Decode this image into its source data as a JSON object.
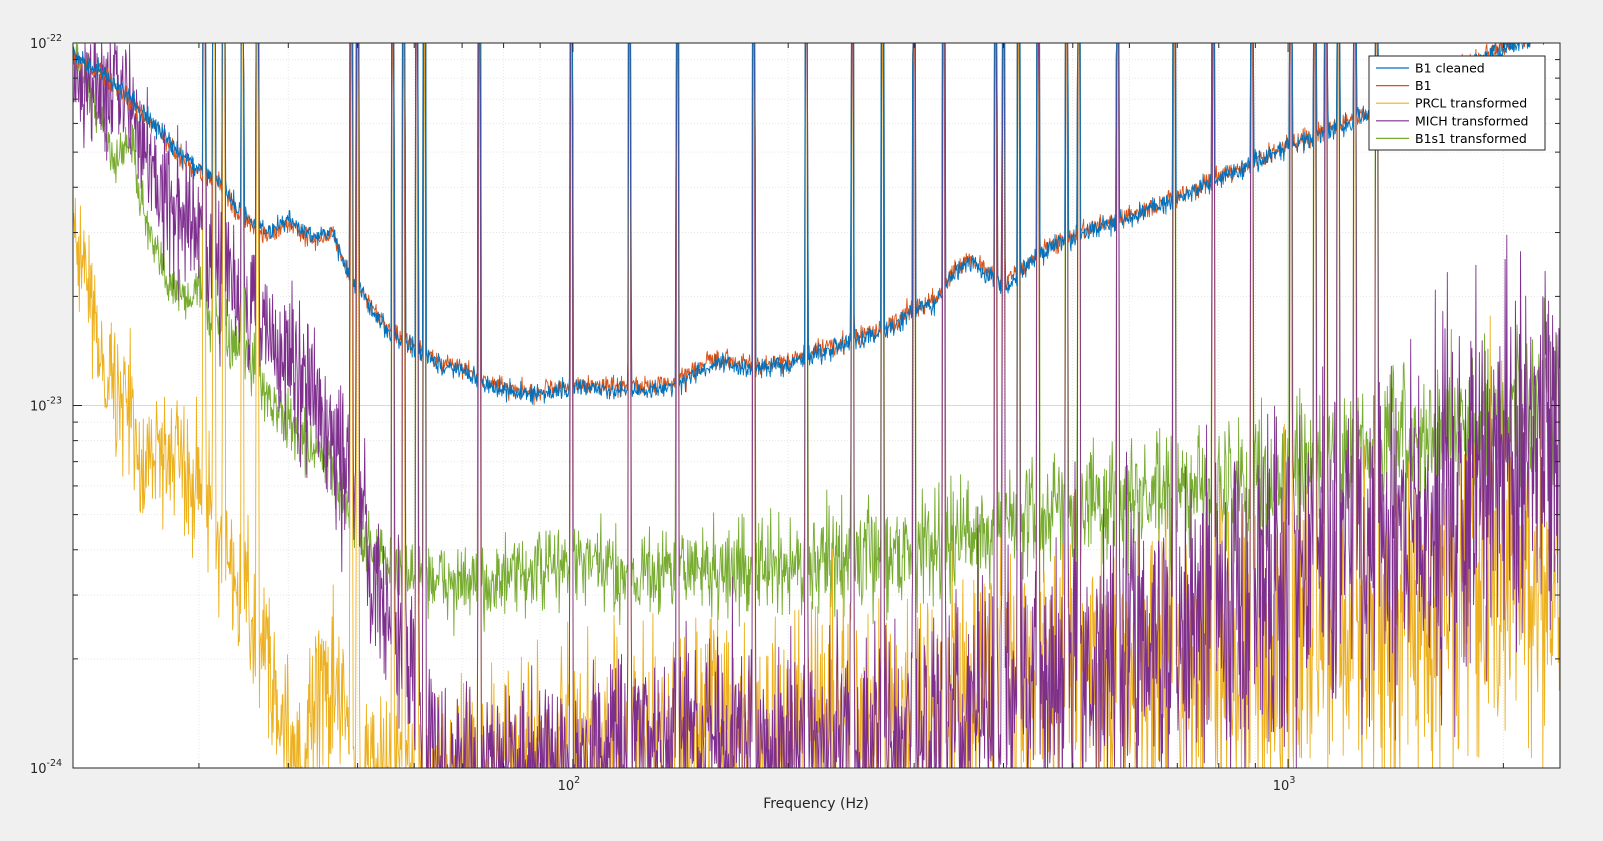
{
  "chart_data": {
    "type": "line",
    "title": "",
    "xlabel": "Frequency (Hz)",
    "ylabel": "",
    "xscale": "log",
    "yscale": "log",
    "xlim": [
      20,
      2400
    ],
    "ylim": [
      1e-24,
      1e-22
    ],
    "grid": true,
    "legend_position": "top-right",
    "x_ticks": [
      {
        "value": 100,
        "base": "10",
        "exp": "2"
      },
      {
        "value": 1000,
        "base": "10",
        "exp": "3"
      }
    ],
    "y_ticks": [
      {
        "value": 1e-22,
        "base": "10",
        "exp": "-22"
      },
      {
        "value": 1e-23,
        "base": "10",
        "exp": "-23"
      },
      {
        "value": 1e-24,
        "base": "10",
        "exp": "-24"
      }
    ],
    "series": [
      {
        "name": "B1 cleaned",
        "color": "#0072BD",
        "points": [
          [
            20,
            9.2e-23
          ],
          [
            22,
            8.3e-23
          ],
          [
            24,
            7e-23
          ],
          [
            26,
            6e-23
          ],
          [
            28,
            5e-23
          ],
          [
            30,
            4.5e-23
          ],
          [
            32,
            4.2e-23
          ],
          [
            34,
            3.5e-23
          ],
          [
            36,
            3.1e-23
          ],
          [
            38,
            3e-23
          ],
          [
            40,
            3.3e-23
          ],
          [
            42,
            3e-23
          ],
          [
            44,
            2.9e-23
          ],
          [
            46,
            3.1e-23
          ],
          [
            48,
            2.4e-23
          ],
          [
            50,
            2.1e-23
          ],
          [
            53,
            1.8e-23
          ],
          [
            56,
            1.55e-23
          ],
          [
            60,
            1.45e-23
          ],
          [
            65,
            1.3e-23
          ],
          [
            70,
            1.25e-23
          ],
          [
            75,
            1.15e-23
          ],
          [
            80,
            1.1e-23
          ],
          [
            85,
            1.08e-23
          ],
          [
            90,
            1.07e-23
          ],
          [
            95,
            1.1e-23
          ],
          [
            100,
            1.12e-23
          ],
          [
            110,
            1.1e-23
          ],
          [
            120,
            1.09e-23
          ],
          [
            130,
            1.1e-23
          ],
          [
            140,
            1.13e-23
          ],
          [
            150,
            1.25e-23
          ],
          [
            160,
            1.32e-23
          ],
          [
            170,
            1.28e-23
          ],
          [
            180,
            1.26e-23
          ],
          [
            200,
            1.3e-23
          ],
          [
            220,
            1.4e-23
          ],
          [
            250,
            1.5e-23
          ],
          [
            280,
            1.65e-23
          ],
          [
            300,
            1.85e-23
          ],
          [
            320,
            1.9e-23
          ],
          [
            340,
            2.3e-23
          ],
          [
            360,
            2.5e-23
          ],
          [
            380,
            2.3e-23
          ],
          [
            400,
            2.1e-23
          ],
          [
            420,
            2.3e-23
          ],
          [
            460,
            2.7e-23
          ],
          [
            500,
            2.9e-23
          ],
          [
            550,
            3.1e-23
          ],
          [
            600,
            3.3e-23
          ],
          [
            700,
            3.7e-23
          ],
          [
            800,
            4.2e-23
          ],
          [
            900,
            4.7e-23
          ],
          [
            1000,
            5.2e-23
          ],
          [
            1200,
            5.9e-23
          ],
          [
            1400,
            6.9e-23
          ],
          [
            1600,
            7.8e-23
          ],
          [
            1800,
            8.8e-23
          ],
          [
            2000,
            9.6e-23
          ],
          [
            2200,
            1.04e-22
          ],
          [
            2400,
            1.1e-22
          ]
        ]
      },
      {
        "name": "B1",
        "color": "#D95319",
        "points": [
          [
            20,
            9.1e-23
          ],
          [
            22,
            8.2e-23
          ],
          [
            24,
            6.9e-23
          ],
          [
            26,
            5.9e-23
          ],
          [
            28,
            4.9e-23
          ],
          [
            30,
            4.4e-23
          ],
          [
            32,
            4.1e-23
          ],
          [
            34,
            3.4e-23
          ],
          [
            36,
            3e-23
          ],
          [
            38,
            2.95e-23
          ],
          [
            40,
            3.25e-23
          ],
          [
            42,
            2.95e-23
          ],
          [
            44,
            2.85e-23
          ],
          [
            46,
            3.05e-23
          ],
          [
            48,
            2.4e-23
          ],
          [
            50,
            2.1e-23
          ],
          [
            53,
            1.8e-23
          ],
          [
            56,
            1.57e-23
          ],
          [
            60,
            1.47e-23
          ],
          [
            65,
            1.33e-23
          ],
          [
            70,
            1.27e-23
          ],
          [
            75,
            1.17e-23
          ],
          [
            80,
            1.12e-23
          ],
          [
            85,
            1.1e-23
          ],
          [
            90,
            1.09e-23
          ],
          [
            95,
            1.12e-23
          ],
          [
            100,
            1.15e-23
          ],
          [
            110,
            1.13e-23
          ],
          [
            120,
            1.12e-23
          ],
          [
            130,
            1.13e-23
          ],
          [
            140,
            1.16e-23
          ],
          [
            150,
            1.28e-23
          ],
          [
            160,
            1.35e-23
          ],
          [
            170,
            1.31e-23
          ],
          [
            180,
            1.29e-23
          ],
          [
            200,
            1.33e-23
          ],
          [
            220,
            1.43e-23
          ],
          [
            250,
            1.53e-23
          ],
          [
            280,
            1.68e-23
          ],
          [
            300,
            1.88e-23
          ],
          [
            320,
            1.93e-23
          ],
          [
            340,
            2.35e-23
          ],
          [
            360,
            2.55e-23
          ],
          [
            380,
            2.35e-23
          ],
          [
            400,
            2.15e-23
          ],
          [
            420,
            2.35e-23
          ],
          [
            460,
            2.75e-23
          ],
          [
            500,
            2.95e-23
          ],
          [
            550,
            3.15e-23
          ],
          [
            600,
            3.35e-23
          ],
          [
            700,
            3.75e-23
          ],
          [
            800,
            4.25e-23
          ],
          [
            900,
            4.75e-23
          ],
          [
            1000,
            5.25e-23
          ],
          [
            1200,
            6e-23
          ],
          [
            1400,
            7e-23
          ],
          [
            1600,
            7.9e-23
          ],
          [
            1800,
            8.9e-23
          ],
          [
            2000,
            9.7e-23
          ],
          [
            2200,
            1.05e-22
          ],
          [
            2400,
            1.12e-22
          ]
        ]
      },
      {
        "name": "PRCL transformed",
        "color": "#EDB120",
        "points": [
          [
            20,
            3.5e-23
          ],
          [
            21,
            2e-23
          ],
          [
            22,
            1.4e-23
          ],
          [
            23,
            1.1e-23
          ],
          [
            24,
            1e-23
          ],
          [
            25,
            6e-24
          ],
          [
            26,
            8e-24
          ],
          [
            27,
            7e-24
          ],
          [
            28,
            8.5e-24
          ],
          [
            29,
            6e-24
          ],
          [
            30,
            7e-24
          ],
          [
            31,
            5e-24
          ],
          [
            32,
            4e-24
          ],
          [
            33,
            3.5e-24
          ],
          [
            34,
            2.6e-24
          ],
          [
            35,
            3.2e-24
          ],
          [
            36,
            1.9e-24
          ],
          [
            37,
            2.5e-24
          ],
          [
            38,
            1.6e-24
          ],
          [
            40,
            1.2e-24
          ],
          [
            42,
            1e-24
          ],
          [
            45,
            1.8e-24
          ],
          [
            48,
            1.4e-24
          ],
          [
            50,
            1e-24
          ],
          [
            55,
            1e-24
          ],
          [
            60,
            1e-24
          ],
          [
            80,
            1e-24
          ],
          [
            120,
            1.1e-24
          ],
          [
            160,
            1.4e-24
          ],
          [
            200,
            1.2e-24
          ],
          [
            250,
            1.5e-24
          ],
          [
            300,
            1.3e-24
          ],
          [
            400,
            1.8e-24
          ],
          [
            500,
            1.6e-24
          ],
          [
            600,
            2e-24
          ],
          [
            700,
            1.7e-24
          ],
          [
            800,
            2.1e-24
          ],
          [
            900,
            1.8e-24
          ],
          [
            1000,
            2e-24
          ],
          [
            1200,
            2.2e-24
          ],
          [
            1400,
            2.5e-24
          ],
          [
            1600,
            2.7e-24
          ],
          [
            1800,
            2.9e-24
          ],
          [
            2000,
            3.1e-24
          ],
          [
            2200,
            3.4e-24
          ],
          [
            2400,
            3.7e-24
          ]
        ]
      },
      {
        "name": "MICH transformed",
        "color": "#7E2F8E",
        "points": [
          [
            20,
            8.5e-23
          ],
          [
            21,
            7.5e-23
          ],
          [
            22,
            8e-23
          ],
          [
            23,
            7.7e-23
          ],
          [
            24,
            6.8e-23
          ],
          [
            25,
            5.5e-23
          ],
          [
            26,
            4.4e-23
          ],
          [
            28,
            3.4e-23
          ],
          [
            30,
            3e-23
          ],
          [
            32,
            2.5e-23
          ],
          [
            34,
            2.1e-23
          ],
          [
            36,
            1.8e-23
          ],
          [
            38,
            1.5e-23
          ],
          [
            40,
            1.3e-23
          ],
          [
            42,
            1.15e-23
          ],
          [
            44,
            9.5e-24
          ],
          [
            46,
            8e-24
          ],
          [
            48,
            6.5e-24
          ],
          [
            50,
            5.3e-24
          ],
          [
            52,
            3.8e-24
          ],
          [
            54,
            3e-24
          ],
          [
            56,
            2.5e-24
          ],
          [
            58,
            2.3e-24
          ],
          [
            60,
            1.8e-24
          ],
          [
            62,
            1.3e-24
          ],
          [
            65,
            1e-24
          ],
          [
            100,
            1e-24
          ],
          [
            150,
            1.2e-24
          ],
          [
            200,
            1.1e-24
          ],
          [
            300,
            1.2e-24
          ],
          [
            350,
            1.4e-24
          ],
          [
            400,
            1.6e-24
          ],
          [
            500,
            1.9e-24
          ],
          [
            600,
            2.2e-24
          ],
          [
            700,
            2.5e-24
          ],
          [
            800,
            2.8e-24
          ],
          [
            900,
            3.1e-24
          ],
          [
            1000,
            3.3e-24
          ],
          [
            1200,
            3.8e-24
          ],
          [
            1400,
            4.3e-24
          ],
          [
            1600,
            5e-24
          ],
          [
            1800,
            5.8e-24
          ],
          [
            2000,
            6.8e-24
          ],
          [
            2200,
            8e-24
          ],
          [
            2400,
            9.5e-24
          ]
        ]
      },
      {
        "name": "B1s1 transformed",
        "color": "#77AC30",
        "points": [
          [
            20,
            9.5e-23
          ],
          [
            21,
            7.5e-23
          ],
          [
            22,
            6e-23
          ],
          [
            23,
            4.6e-23
          ],
          [
            24,
            5.6e-23
          ],
          [
            25,
            3.6e-23
          ],
          [
            26,
            2.6e-23
          ],
          [
            27,
            2.3e-23
          ],
          [
            28,
            2.1e-23
          ],
          [
            29,
            1.9e-23
          ],
          [
            30,
            2.3e-23
          ],
          [
            31,
            1.7e-23
          ],
          [
            32,
            1.6e-23
          ],
          [
            34,
            1.4e-23
          ],
          [
            36,
            1.3e-23
          ],
          [
            38,
            1e-23
          ],
          [
            40,
            9e-24
          ],
          [
            42,
            8e-24
          ],
          [
            44,
            7.5e-24
          ],
          [
            46,
            6.5e-24
          ],
          [
            48,
            5.5e-24
          ],
          [
            50,
            4.5e-24
          ],
          [
            55,
            3.6e-24
          ],
          [
            60,
            3.4e-24
          ],
          [
            70,
            3.2e-24
          ],
          [
            80,
            3.3e-24
          ],
          [
            90,
            3.5e-24
          ],
          [
            100,
            3.7e-24
          ],
          [
            120,
            3.4e-24
          ],
          [
            140,
            3.6e-24
          ],
          [
            160,
            3.5e-24
          ],
          [
            180,
            3.5e-24
          ],
          [
            200,
            3.6e-24
          ],
          [
            250,
            3.8e-24
          ],
          [
            300,
            4e-24
          ],
          [
            350,
            4.3e-24
          ],
          [
            400,
            4.6e-24
          ],
          [
            450,
            5e-24
          ],
          [
            500,
            5.2e-24
          ],
          [
            600,
            5.4e-24
          ],
          [
            700,
            5.6e-24
          ],
          [
            800,
            5.9e-24
          ],
          [
            900,
            6.2e-24
          ],
          [
            1000,
            6.5e-24
          ],
          [
            1200,
            7e-24
          ],
          [
            1400,
            7.5e-24
          ],
          [
            1600,
            8.2e-24
          ],
          [
            1800,
            8.8e-24
          ],
          [
            2000,
            9.5e-24
          ],
          [
            2200,
            1.05e-23
          ],
          [
            2400,
            1.15e-23
          ]
        ]
      }
    ],
    "spectral_lines_hz": [
      30.5,
      31.5,
      32.5,
      34.5,
      36.2,
      49,
      50,
      56,
      58,
      60.5,
      62,
      74,
      99.5,
      120,
      140,
      179,
      212,
      246,
      271,
      300,
      330,
      390,
      400,
      420,
      447,
      490,
      510,
      578,
      693,
      786,
      890,
      1009,
      1090,
      1130,
      1175,
      1240,
      1330
    ]
  }
}
